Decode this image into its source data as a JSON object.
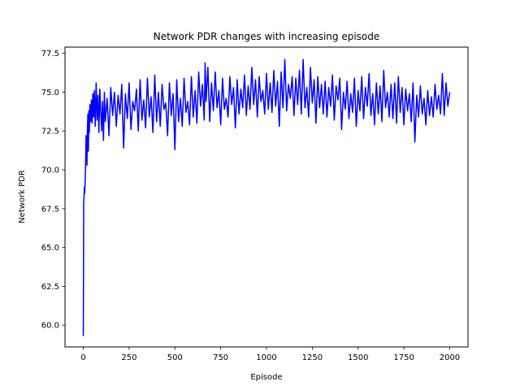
{
  "chart_data": {
    "type": "line",
    "title": "Network PDR changes with increasing episode",
    "xlabel": "Episode",
    "ylabel": "Network PDR",
    "xlim": [
      -100,
      2100
    ],
    "ylim": [
      58.6,
      77.9
    ],
    "xticks": [
      0,
      250,
      500,
      750,
      1000,
      1250,
      1500,
      1750,
      2000
    ],
    "yticks": [
      60.0,
      62.5,
      65.0,
      67.5,
      70.0,
      72.5,
      75.0,
      77.5
    ],
    "xtick_labels": [
      "0",
      "250",
      "500",
      "750",
      "1000",
      "1250",
      "1500",
      "1750",
      "2000"
    ],
    "ytick_labels": [
      "60.0",
      "62.5",
      "65.0",
      "67.5",
      "70.0",
      "72.5",
      "75.0",
      "77.5"
    ],
    "grid": false,
    "series": [
      {
        "color": "#0000ff",
        "x": [
          0,
          2,
          4,
          6,
          8,
          10,
          12,
          15,
          18,
          20,
          22,
          25,
          28,
          30,
          33,
          36,
          40,
          44,
          48,
          52,
          56,
          60,
          65,
          70,
          75,
          80,
          85,
          90,
          95,
          100,
          105,
          110,
          115,
          120,
          130,
          140,
          150,
          160,
          170,
          180,
          190,
          200,
          210,
          220,
          230,
          240,
          250,
          260,
          270,
          280,
          290,
          300,
          310,
          320,
          330,
          340,
          350,
          360,
          370,
          380,
          390,
          400,
          410,
          420,
          430,
          440,
          450,
          460,
          470,
          480,
          490,
          500,
          510,
          520,
          530,
          540,
          550,
          560,
          570,
          580,
          590,
          600,
          610,
          620,
          630,
          640,
          650,
          660,
          665,
          670,
          680,
          690,
          700,
          710,
          720,
          730,
          740,
          750,
          760,
          770,
          780,
          790,
          800,
          810,
          820,
          830,
          840,
          850,
          860,
          870,
          880,
          890,
          900,
          910,
          920,
          930,
          940,
          950,
          960,
          970,
          980,
          990,
          1000,
          1010,
          1020,
          1030,
          1040,
          1050,
          1060,
          1070,
          1080,
          1090,
          1100,
          1110,
          1120,
          1130,
          1140,
          1150,
          1160,
          1170,
          1180,
          1190,
          1200,
          1210,
          1220,
          1230,
          1240,
          1250,
          1260,
          1270,
          1280,
          1290,
          1300,
          1310,
          1320,
          1330,
          1340,
          1350,
          1360,
          1370,
          1380,
          1390,
          1400,
          1410,
          1420,
          1430,
          1440,
          1450,
          1460,
          1470,
          1480,
          1490,
          1500,
          1510,
          1520,
          1530,
          1540,
          1550,
          1560,
          1570,
          1580,
          1590,
          1600,
          1610,
          1620,
          1630,
          1640,
          1650,
          1660,
          1670,
          1680,
          1690,
          1700,
          1710,
          1720,
          1730,
          1740,
          1750,
          1760,
          1770,
          1780,
          1790,
          1800,
          1810,
          1820,
          1830,
          1840,
          1850,
          1860,
          1870,
          1880,
          1890,
          1900,
          1910,
          1920,
          1930,
          1940,
          1950,
          1960,
          1970,
          1980,
          1990,
          2000
        ],
        "y": [
          59.3,
          67.9,
          68.3,
          68.9,
          68.5,
          69.3,
          70.1,
          72.2,
          71.5,
          70.3,
          72.5,
          73.6,
          71.2,
          73.8,
          72.4,
          74.2,
          73.1,
          74.5,
          73.0,
          74.9,
          73.4,
          75.1,
          72.8,
          75.6,
          73.2,
          74.8,
          72.4,
          75.2,
          73.8,
          72.5,
          74.4,
          71.9,
          75.0,
          73.1,
          74.6,
          72.2,
          75.3,
          73.5,
          75.0,
          72.8,
          74.8,
          73.6,
          75.5,
          71.4,
          74.9,
          73.3,
          75.6,
          72.6,
          74.4,
          73.8,
          75.2,
          72.5,
          75.8,
          73.2,
          74.5,
          72.7,
          75.9,
          73.4,
          74.7,
          72.4,
          76.1,
          73.1,
          75.0,
          72.8,
          75.5,
          73.9,
          74.3,
          72.2,
          75.6,
          73.5,
          74.9,
          71.3,
          75.8,
          73.1,
          74.6,
          72.8,
          75.9,
          73.7,
          74.4,
          72.9,
          76.0,
          73.4,
          75.1,
          73.0,
          76.3,
          74.1,
          75.5,
          73.2,
          76.9,
          74.4,
          76.6,
          73.1,
          75.6,
          73.8,
          76.3,
          74.0,
          75.1,
          72.9,
          75.9,
          73.9,
          74.6,
          73.4,
          76.0,
          74.2,
          75.3,
          72.7,
          75.8,
          73.6,
          75.2,
          74.0,
          76.1,
          73.5,
          75.4,
          73.9,
          76.6,
          74.2,
          75.8,
          73.4,
          76.0,
          74.4,
          75.1,
          73.6,
          76.2,
          73.9,
          75.6,
          73.7,
          76.4,
          74.1,
          75.7,
          72.8,
          76.3,
          74.0,
          77.1,
          73.8,
          75.5,
          74.6,
          76.0,
          73.5,
          75.9,
          74.2,
          76.4,
          73.6,
          77.1,
          74.0,
          75.3,
          73.4,
          76.6,
          74.3,
          75.8,
          73.0,
          76.0,
          74.0,
          75.5,
          73.6,
          75.7,
          73.4,
          75.3,
          74.1,
          76.1,
          73.2,
          75.4,
          74.5,
          75.9,
          72.6,
          75.0,
          73.9,
          75.7,
          73.3,
          74.9,
          73.7,
          75.9,
          72.8,
          75.1,
          73.8,
          76.0,
          73.3,
          75.3,
          74.1,
          76.2,
          73.5,
          74.9,
          72.9,
          75.6,
          73.6,
          75.4,
          73.1,
          76.4,
          74.0,
          75.0,
          73.4,
          75.5,
          73.3,
          75.6,
          73.0,
          76.0,
          73.7,
          75.3,
          72.9,
          75.2,
          73.8,
          74.9,
          73.1,
          75.6,
          71.8,
          74.8,
          73.4,
          75.4,
          73.6,
          74.6,
          72.9,
          75.1,
          73.5,
          74.7,
          73.4,
          75.5,
          73.9,
          74.8,
          73.6,
          76.2,
          73.5,
          75.6,
          74.1,
          75.0
        ]
      }
    ]
  }
}
